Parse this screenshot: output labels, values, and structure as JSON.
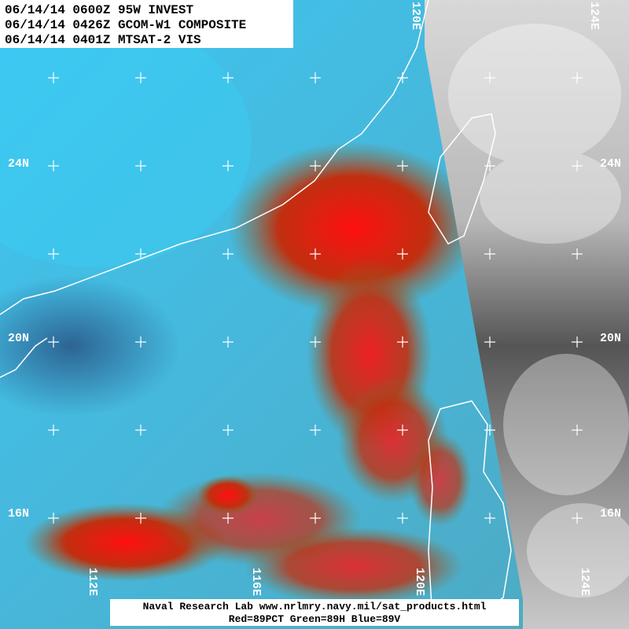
{
  "header": {
    "lines": [
      "06/14/14 0600Z 95W INVEST",
      "06/14/14 0426Z GCOM-W1 COMPOSITE",
      "06/14/14 0401Z MTSAT-2 VIS"
    ]
  },
  "grid": {
    "lat_labels": [
      "24N",
      "20N",
      "16N"
    ],
    "lon_labels_top": [
      "120E",
      "124E"
    ],
    "lon_labels_bottom": [
      "112E",
      "116E",
      "120E",
      "124E"
    ]
  },
  "footer": {
    "lines": [
      "Naval Research Lab  www.nrlmry.navy.mil/sat_products.html",
      "Red=89PCT  Green=89H  Blue=89V"
    ]
  }
}
